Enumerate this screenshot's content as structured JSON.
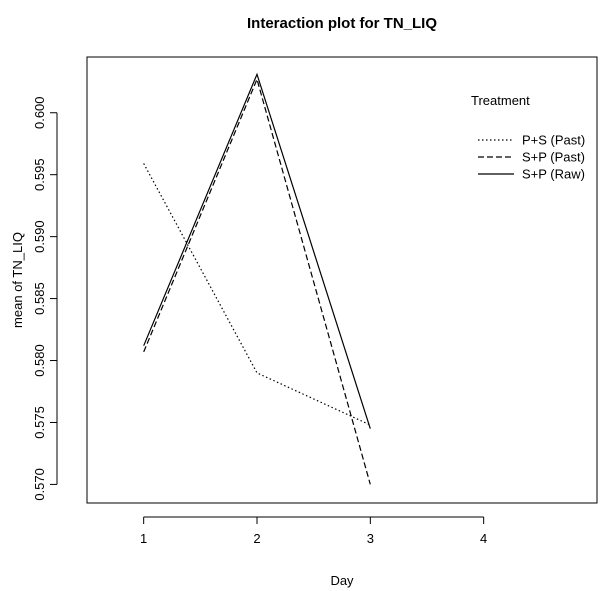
{
  "chart_data": {
    "type": "line",
    "title": "Interaction plot for TN_LIQ",
    "xlabel": "Day",
    "ylabel": "mean of  TN_LIQ",
    "x": [
      1,
      2,
      3
    ],
    "xticks": [
      "1",
      "2",
      "3",
      "4"
    ],
    "yticks": [
      "0.570",
      "0.575",
      "0.580",
      "0.585",
      "0.590",
      "0.595",
      "0.600"
    ],
    "xlim": [
      0.5,
      5.0
    ],
    "ylim": [
      0.5685,
      0.6045
    ],
    "legend_title": "Treatment",
    "legend_position": "top-right",
    "grid": false,
    "series": [
      {
        "name": "P+S (Past)",
        "values": [
          0.5959,
          0.579,
          0.5748
        ],
        "dash": "dotted",
        "color": "#000000"
      },
      {
        "name": "S+P (Past)",
        "values": [
          0.5807,
          0.6027,
          0.57
        ],
        "dash": "dashed",
        "color": "#000000"
      },
      {
        "name": "S+P (Raw)",
        "values": [
          0.5812,
          0.6031,
          0.5745
        ],
        "dash": "solid",
        "color": "#000000"
      }
    ]
  }
}
